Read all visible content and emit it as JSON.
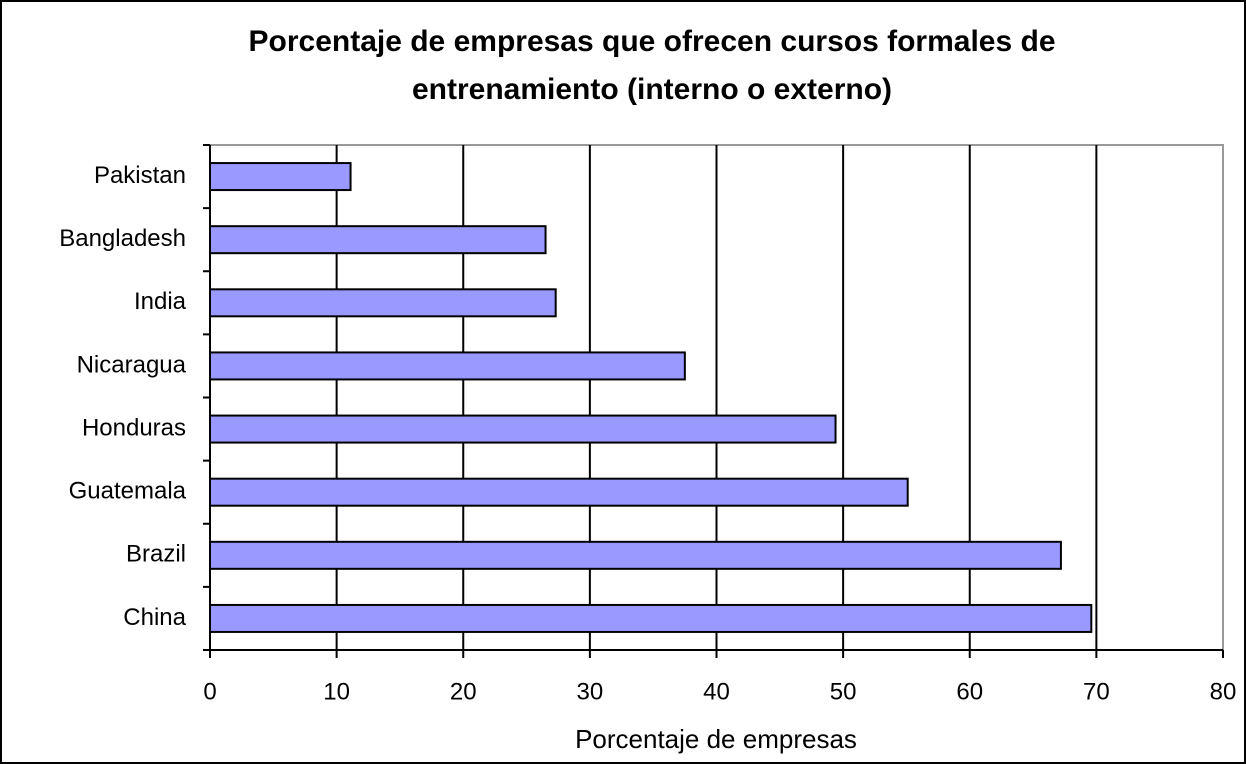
{
  "chart_data": {
    "type": "hbar",
    "title": "Porcentaje de empresas que ofrecen cursos formales de entrenamiento (interno o externo)",
    "x_label": "Porcentaje de empresas",
    "categories": [
      "Pakistan",
      "Bangladesh",
      "India",
      "Nicaragua",
      "Honduras",
      "Guatemala",
      "Brazil",
      "China"
    ],
    "values": [
      11.1,
      26.5,
      27.3,
      37.5,
      49.4,
      55.1,
      67.2,
      69.6
    ],
    "color": "#9999ff",
    "xlim": [
      0,
      80
    ],
    "xticks": [
      0,
      10,
      20,
      30,
      40,
      50,
      60,
      70,
      80
    ],
    "grid": true
  }
}
